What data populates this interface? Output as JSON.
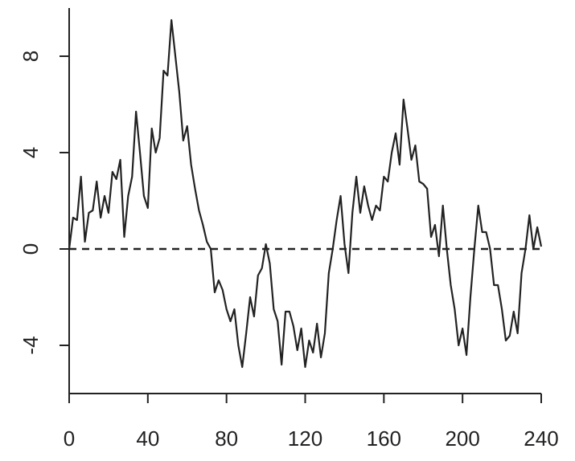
{
  "chart_data": {
    "type": "line",
    "x": [
      0,
      2,
      4,
      6,
      8,
      10,
      12,
      14,
      16,
      18,
      20,
      22,
      24,
      26,
      28,
      30,
      32,
      34,
      36,
      38,
      40,
      42,
      44,
      46,
      48,
      50,
      52,
      54,
      56,
      58,
      60,
      62,
      64,
      66,
      68,
      70,
      72,
      74,
      76,
      78,
      80,
      82,
      84,
      86,
      88,
      90,
      92,
      94,
      96,
      98,
      100,
      102,
      104,
      106,
      108,
      110,
      112,
      114,
      116,
      118,
      120,
      122,
      124,
      126,
      128,
      130,
      132,
      134,
      136,
      138,
      140,
      142,
      144,
      146,
      148,
      150,
      152,
      154,
      156,
      158,
      160,
      162,
      164,
      166,
      168,
      170,
      172,
      174,
      176,
      178,
      180,
      182,
      184,
      186,
      188,
      190,
      192,
      194,
      196,
      198,
      200,
      202,
      204,
      206,
      208,
      210,
      212,
      214,
      216,
      218,
      220,
      222,
      224,
      226,
      228,
      230,
      232,
      234,
      236,
      238,
      240
    ],
    "series": [
      {
        "color": "#222222",
        "values": [
          0,
          1.3,
          1.2,
          3.0,
          0.3,
          1.5,
          1.6,
          2.8,
          1.3,
          2.2,
          1.5,
          3.2,
          2.9,
          3.7,
          0.5,
          2.2,
          3.0,
          5.7,
          4.0,
          2.2,
          1.7,
          5.0,
          4.0,
          4.6,
          7.4,
          7.2,
          9.5,
          8.0,
          6.5,
          4.5,
          5.1,
          3.5,
          2.5,
          1.6,
          1.0,
          0.3,
          0.0,
          -1.8,
          -1.3,
          -1.7,
          -2.5,
          -3.0,
          -2.5,
          -4.0,
          -4.9,
          -3.5,
          -2.0,
          -2.8,
          -1.1,
          -0.8,
          0.2,
          -0.6,
          -2.5,
          -3.0,
          -4.8,
          -2.6,
          -2.6,
          -3.2,
          -4.2,
          -3.3,
          -4.9,
          -3.8,
          -4.3,
          -3.1,
          -4.5,
          -3.5,
          -1.0,
          0.0,
          1.2,
          2.2,
          0.2,
          -1.0,
          1.5,
          3.0,
          1.5,
          2.6,
          1.8,
          1.2,
          1.8,
          1.6,
          3.0,
          2.8,
          4.0,
          4.8,
          3.5,
          6.2,
          5.0,
          3.7,
          4.3,
          2.8,
          2.7,
          2.5,
          0.5,
          1.0,
          -0.3,
          1.8,
          0.0,
          -1.5,
          -2.5,
          -4.0,
          -3.3,
          -4.4,
          -2.0,
          0.0,
          1.8,
          0.7,
          0.7,
          0.0,
          -1.5,
          -1.5,
          -2.5,
          -3.8,
          -3.6,
          -2.6,
          -3.5,
          -1.0,
          0.0,
          1.4,
          0.0,
          0.9,
          0.1
        ]
      }
    ],
    "reference_line": 0,
    "xlim": [
      0,
      240
    ],
    "xticks": [
      0,
      40,
      80,
      120,
      160,
      200,
      240
    ],
    "ylim": [
      -6,
      10
    ],
    "yticks": [
      -4,
      0,
      4,
      8
    ]
  }
}
